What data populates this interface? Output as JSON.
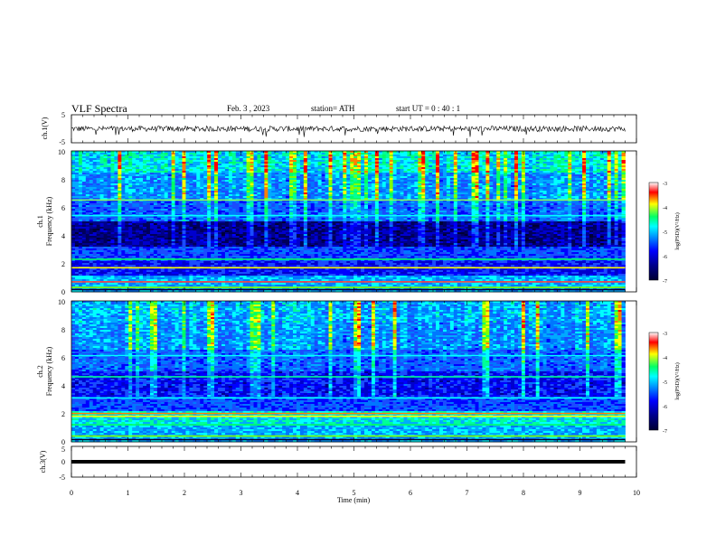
{
  "header": {
    "title": "VLF  Spectra",
    "date": "Feb. 3  , 2023",
    "station": "station= ATH",
    "start_ut": "start  UT  =    0 : 40 : 1"
  },
  "colors": {
    "waveform": "#000000",
    "colormap": [
      "#000033",
      "#00008b",
      "#0000ff",
      "#0077ff",
      "#00ffff",
      "#00ff66",
      "#ffff00",
      "#ff0000",
      "#ffffff"
    ]
  },
  "chart_data": [
    {
      "type": "line",
      "panel": "ch1-waveform",
      "ylabel": "ch.1(V)",
      "ylim": [
        -5,
        5
      ],
      "y_ticks": [
        "5",
        "-5"
      ],
      "description_values": {
        "baseline": 0,
        "amplitude_approx": 1,
        "spikes_down_min": -3
      },
      "xlim": [
        0,
        10
      ]
    },
    {
      "type": "heatmap",
      "panel": "ch1-spectrogram",
      "ylabel": "ch.1\nFrequency (kHz)",
      "ylabel_line1": "ch.1",
      "ylabel_line2": "Frequency (kHz)",
      "ylim": [
        0,
        10
      ],
      "y_ticks": [
        "10",
        "8",
        "6",
        "4",
        "2",
        "0"
      ],
      "xlim": [
        0,
        10
      ],
      "data_extent_min": [
        0,
        9.8
      ],
      "colorbar": {
        "label": "log(PSD)(V²/Hz)",
        "range": [
          -7,
          -3
        ],
        "ticks": [
          "-3",
          "-4",
          "-5",
          "-6",
          "-7"
        ]
      }
    },
    {
      "type": "heatmap",
      "panel": "ch2-spectrogram",
      "ylabel_line1": "ch.2",
      "ylabel_line2": "Frequency (kHz)",
      "ylim": [
        0,
        10
      ],
      "y_ticks": [
        "10",
        "8",
        "6",
        "4",
        "2",
        "0"
      ],
      "xlim": [
        0,
        10
      ],
      "data_extent_min": [
        0,
        9.8
      ],
      "colorbar": {
        "label": "log(PSD)(V²/Hz)",
        "range": [
          -7,
          -3
        ],
        "ticks": [
          "-3",
          "-4",
          "-5",
          "-6",
          "-7"
        ]
      }
    },
    {
      "type": "line",
      "panel": "ch3-waveform",
      "ylabel": "ch.3(V)",
      "ylim": [
        -5,
        5
      ],
      "y_ticks": [
        "5",
        "0",
        "-5"
      ],
      "description_values": {
        "constant_level": -1.5
      },
      "xlim": [
        0,
        10
      ],
      "xlabel": "Time  (min)",
      "x_ticks": [
        "0",
        "1",
        "2",
        "3",
        "4",
        "5",
        "6",
        "7",
        "8",
        "9",
        "10"
      ]
    }
  ]
}
